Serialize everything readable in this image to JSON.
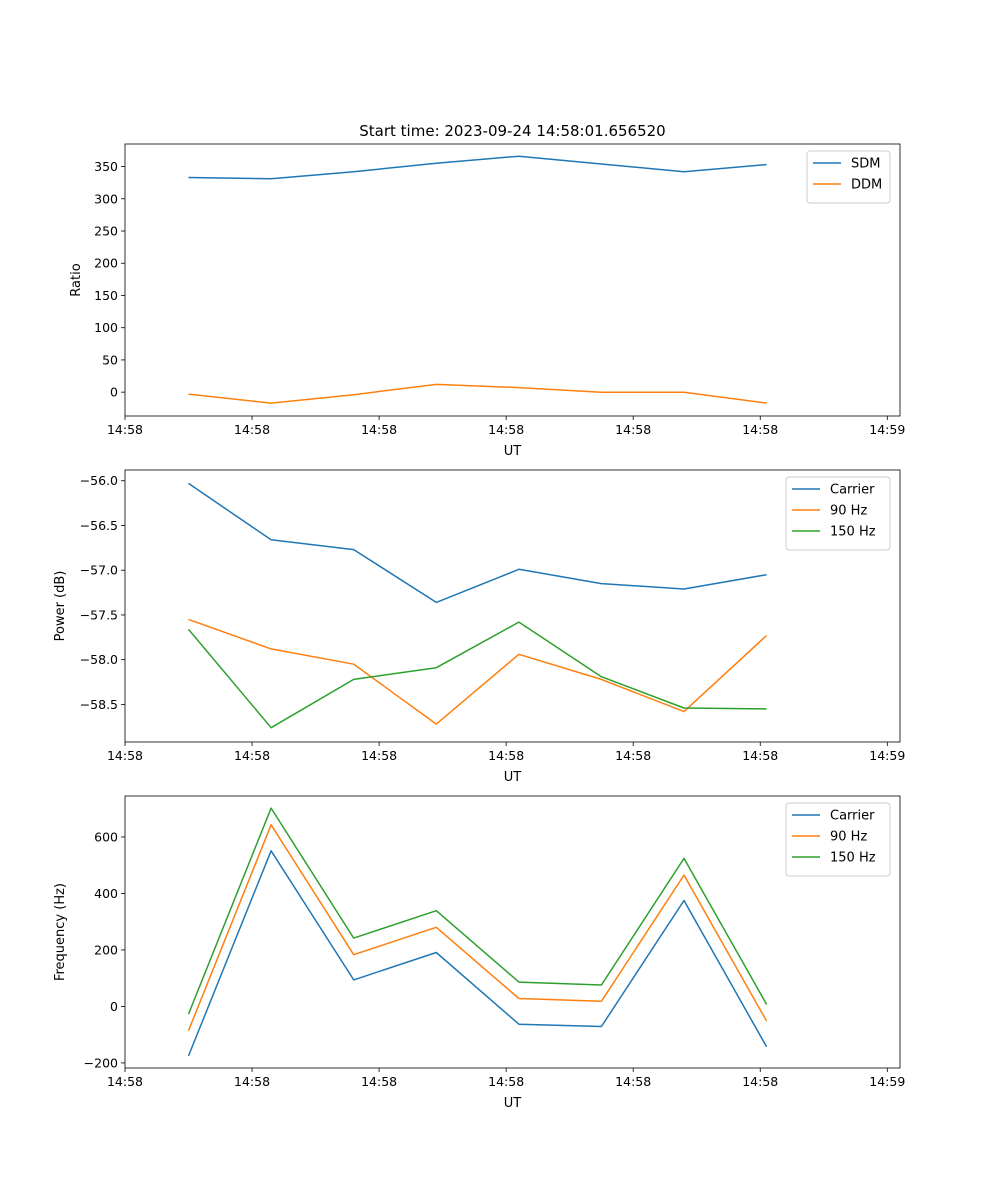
{
  "chart_data": [
    {
      "type": "line",
      "title": "Start time: 2023-09-24 14:58:01.656520",
      "xlabel": "UT",
      "ylabel": "Ratio",
      "xlim": [
        0,
        6.1
      ],
      "ylim": [
        -37,
        385
      ],
      "x": [
        0.5,
        1.15,
        1.8,
        2.45,
        3.1,
        3.75,
        4.4,
        5.05
      ],
      "xticks": [
        0,
        1,
        2,
        3,
        4,
        5,
        6
      ],
      "xticklabels": [
        "14:58",
        "14:58",
        "14:58",
        "14:58",
        "14:58",
        "14:58",
        "14:59"
      ],
      "yticks": [
        0,
        50,
        100,
        150,
        200,
        250,
        300,
        350
      ],
      "yticklabels": [
        "0",
        "50",
        "100",
        "150",
        "200",
        "250",
        "300",
        "350"
      ],
      "legend": "top-right",
      "grid": false,
      "series": [
        {
          "name": "SDM",
          "color": "#1f77b4",
          "values": [
            333,
            331,
            342,
            355,
            366,
            354,
            342,
            353
          ]
        },
        {
          "name": "DDM",
          "color": "#ff7f0e",
          "values": [
            -3,
            -17,
            -4,
            12,
            7,
            0,
            0,
            -17
          ]
        }
      ]
    },
    {
      "type": "line",
      "title": "",
      "xlabel": "UT",
      "ylabel": "Power (dB)",
      "xlim": [
        0,
        6.1
      ],
      "ylim": [
        -58.92,
        -55.88
      ],
      "x": [
        0.5,
        1.15,
        1.8,
        2.45,
        3.1,
        3.75,
        4.4,
        5.05
      ],
      "xticks": [
        0,
        1,
        2,
        3,
        4,
        5,
        6
      ],
      "xticklabels": [
        "14:58",
        "14:58",
        "14:58",
        "14:58",
        "14:58",
        "14:58",
        "14:59"
      ],
      "yticks": [
        -58.5,
        -58.0,
        -57.5,
        -57.0,
        -56.5,
        -56.0
      ],
      "yticklabels": [
        "−58.5",
        "−58.0",
        "−57.5",
        "−57.0",
        "−56.5",
        "−56.0"
      ],
      "legend": "top-right",
      "grid": false,
      "series": [
        {
          "name": "Carrier",
          "color": "#1f77b4",
          "values": [
            -56.03,
            -56.66,
            -56.77,
            -57.36,
            -56.99,
            -57.15,
            -57.21,
            -57.05
          ]
        },
        {
          "name": "90 Hz",
          "color": "#ff7f0e",
          "values": [
            -57.55,
            -57.88,
            -58.05,
            -58.72,
            -57.94,
            -58.22,
            -58.58,
            -57.73
          ]
        },
        {
          "name": "150 Hz",
          "color": "#2ca02c",
          "values": [
            -57.66,
            -58.76,
            -58.22,
            -58.09,
            -57.58,
            -58.19,
            -58.54,
            -58.55
          ]
        }
      ]
    },
    {
      "type": "line",
      "title": "",
      "xlabel": "UT",
      "ylabel": "Frequency (Hz)",
      "xlim": [
        0,
        6.1
      ],
      "ylim": [
        -218,
        745
      ],
      "x": [
        0.5,
        1.15,
        1.8,
        2.45,
        3.1,
        3.75,
        4.4,
        5.05
      ],
      "xticks": [
        0,
        1,
        2,
        3,
        4,
        5,
        6
      ],
      "xticklabels": [
        "14:58",
        "14:58",
        "14:58",
        "14:58",
        "14:58",
        "14:58",
        "14:59"
      ],
      "yticks": [
        -200,
        0,
        200,
        400,
        600
      ],
      "yticklabels": [
        "−200",
        "0",
        "200",
        "400",
        "600"
      ],
      "legend": "top-right",
      "grid": false,
      "series": [
        {
          "name": "Carrier",
          "color": "#1f77b4",
          "values": [
            -175,
            551,
            94,
            191,
            -63,
            -71,
            375,
            -143
          ]
        },
        {
          "name": "90 Hz",
          "color": "#ff7f0e",
          "values": [
            -86,
            643,
            183,
            280,
            28,
            18,
            465,
            -52
          ]
        },
        {
          "name": "150 Hz",
          "color": "#2ca02c",
          "values": [
            -27,
            702,
            242,
            339,
            86,
            76,
            524,
            7
          ]
        }
      ]
    }
  ]
}
